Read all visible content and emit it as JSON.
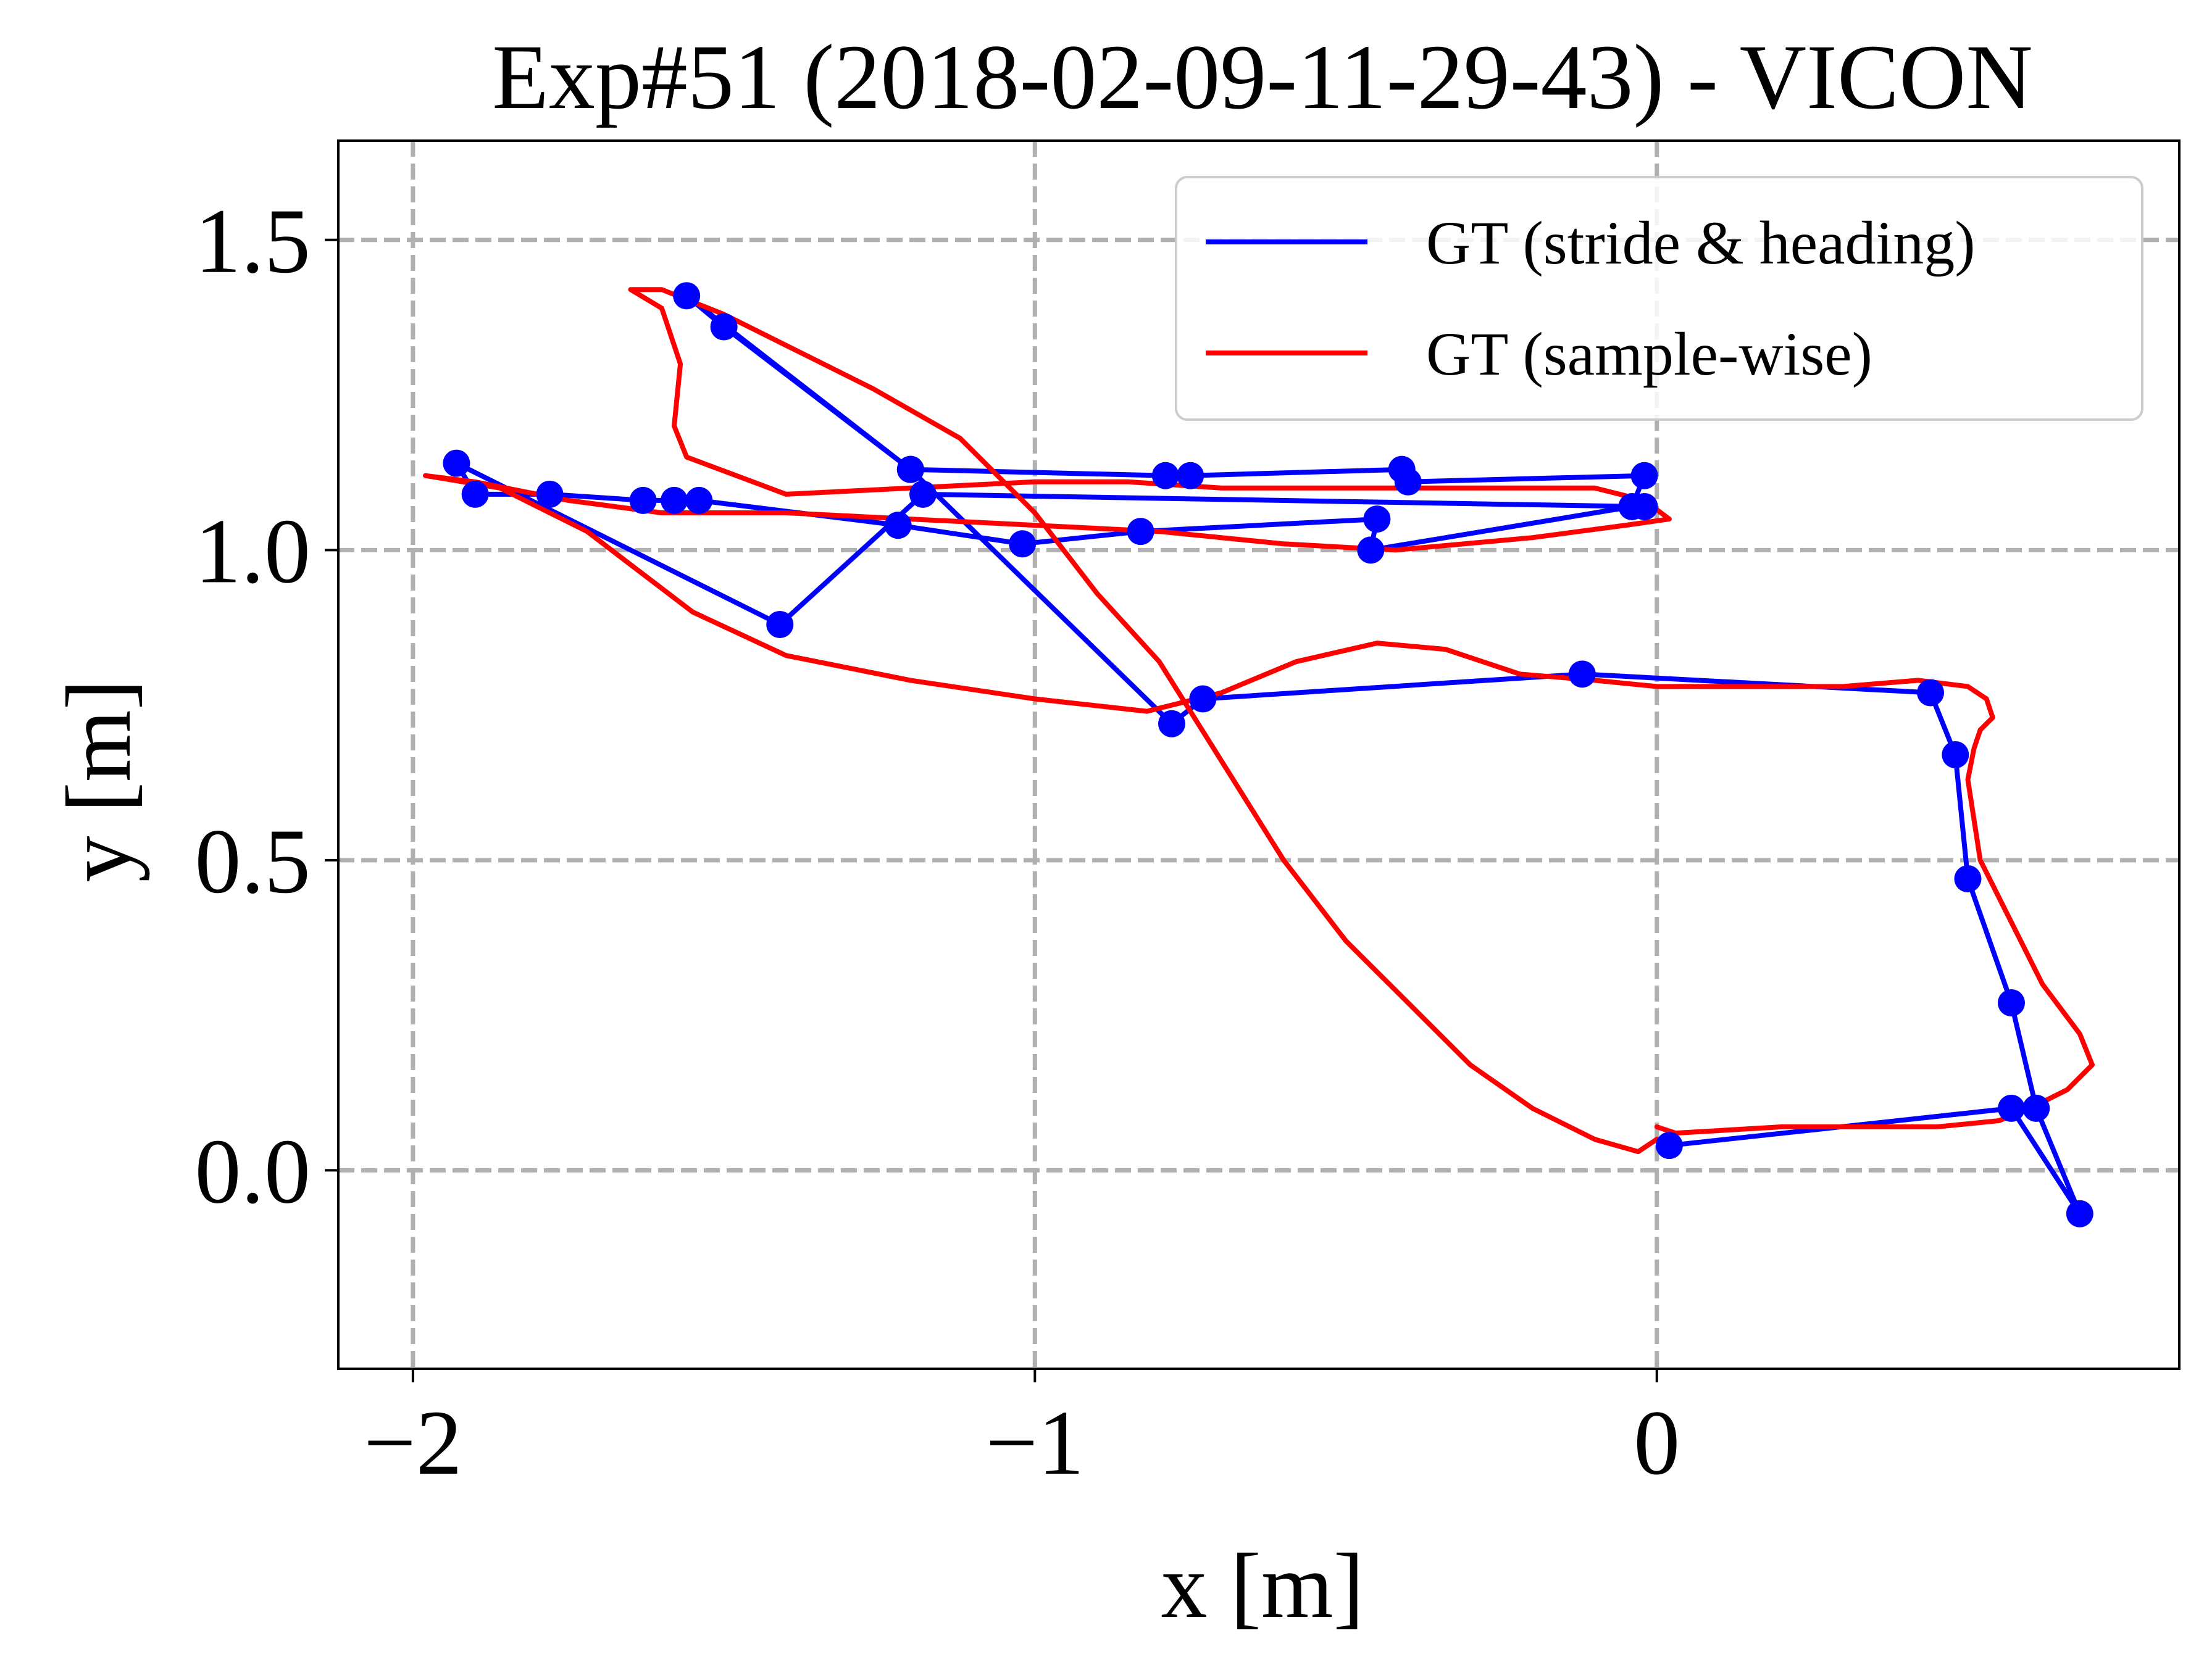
{
  "chart_data": {
    "type": "line",
    "title": "Exp#51 (2018-02-09-11-29-43) - VICON",
    "xlabel": "x [m]",
    "ylabel": "y [m]",
    "xlim": [
      -2.12,
      0.84
    ],
    "ylim": [
      -0.32,
      1.66
    ],
    "x_ticks": [
      {
        "value": -2,
        "label": "−2"
      },
      {
        "value": -1,
        "label": "−1"
      },
      {
        "value": 0,
        "label": "0"
      }
    ],
    "y_ticks": [
      {
        "value": 0.0,
        "label": "0.0"
      },
      {
        "value": 0.5,
        "label": "0.5"
      },
      {
        "value": 1.0,
        "label": "1.0"
      },
      {
        "value": 1.5,
        "label": "1.5"
      }
    ],
    "grid": true,
    "legend_position": "top-right",
    "series": [
      {
        "name": "GT (stride & heading)",
        "color": "#0000ff",
        "markers": true,
        "x": [
          0.02,
          0.57,
          0.68,
          0.61,
          0.57,
          0.5,
          0.48,
          0.44,
          -0.12,
          -0.73,
          -0.78,
          -1.2,
          -1.56,
          -1.5,
          -1.2,
          -0.79,
          -0.75,
          -0.41,
          -0.4,
          -0.02,
          -0.04,
          -0.46,
          -0.45,
          -0.83,
          -1.02,
          -1.22,
          -1.54,
          -1.58,
          -1.63,
          -1.78,
          -1.9,
          -1.93,
          -1.41,
          -1.18,
          -0.02
        ],
        "y": [
          0.04,
          0.1,
          -0.07,
          0.1,
          0.27,
          0.47,
          0.67,
          0.77,
          0.8,
          0.76,
          0.72,
          1.13,
          1.41,
          1.36,
          1.13,
          1.12,
          1.12,
          1.13,
          1.11,
          1.12,
          1.07,
          1.0,
          1.05,
          1.03,
          1.01,
          1.04,
          1.08,
          1.08,
          1.08,
          1.09,
          1.09,
          1.14,
          0.88,
          1.09,
          1.07
        ]
      },
      {
        "name": "GT (sample-wise)",
        "color": "#ff0000",
        "markers": false,
        "x": [
          0.0,
          0.03,
          0.2,
          0.45,
          0.55,
          0.6,
          0.66,
          0.7,
          0.68,
          0.62,
          0.58,
          0.56,
          0.54,
          0.52,
          0.5,
          0.51,
          0.52,
          0.54,
          0.53,
          0.5,
          0.42,
          0.3,
          0.15,
          0.0,
          -0.1,
          -0.22,
          -0.34,
          -0.45,
          -0.58,
          -0.7,
          -0.82,
          -1.0,
          -1.2,
          -1.4,
          -1.55,
          -1.72,
          -1.86,
          -1.98,
          -1.9,
          -1.75,
          -1.6,
          -1.4,
          -1.2,
          -1.0,
          -0.8,
          -0.6,
          -0.42,
          -0.2,
          -0.05,
          0.02,
          -0.02,
          -0.1,
          -0.3,
          -0.5,
          -0.7,
          -0.85,
          -1.0,
          -1.2,
          -1.4,
          -1.56,
          -1.58,
          -1.57,
          -1.6,
          -1.65,
          -1.6,
          -1.5,
          -1.38,
          -1.26,
          -1.12,
          -1.0,
          -0.9,
          -0.8,
          -0.7,
          -0.6,
          -0.5,
          -0.4,
          -0.3,
          -0.2,
          -0.1,
          -0.03,
          0.0
        ],
        "y": [
          0.07,
          0.06,
          0.07,
          0.07,
          0.08,
          0.1,
          0.13,
          0.17,
          0.22,
          0.3,
          0.38,
          0.42,
          0.46,
          0.5,
          0.63,
          0.68,
          0.71,
          0.73,
          0.76,
          0.78,
          0.79,
          0.78,
          0.78,
          0.78,
          0.79,
          0.8,
          0.84,
          0.85,
          0.82,
          0.77,
          0.74,
          0.76,
          0.79,
          0.83,
          0.9,
          1.03,
          1.1,
          1.12,
          1.11,
          1.08,
          1.06,
          1.06,
          1.05,
          1.04,
          1.03,
          1.01,
          1.0,
          1.02,
          1.04,
          1.05,
          1.08,
          1.1,
          1.1,
          1.1,
          1.1,
          1.11,
          1.11,
          1.1,
          1.09,
          1.15,
          1.2,
          1.3,
          1.39,
          1.42,
          1.42,
          1.38,
          1.32,
          1.26,
          1.18,
          1.06,
          0.93,
          0.82,
          0.66,
          0.5,
          0.37,
          0.27,
          0.17,
          0.1,
          0.05,
          0.03,
          0.05
        ]
      }
    ]
  }
}
